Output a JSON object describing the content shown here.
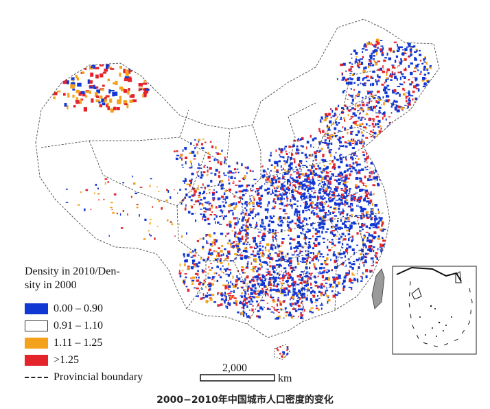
{
  "legend": {
    "title": "Density in 2010/Den-sity in 2000",
    "title_line1": "Density in 2010/Den-",
    "title_line2": "sity in 2000",
    "items": [
      {
        "label": "0.00 – 0.90",
        "color": "#1238d4"
      },
      {
        "label": "0.91 – 1.10",
        "color": "#ffffff"
      },
      {
        "label": "1.11 – 1.25",
        "color": "#f4a21c"
      },
      {
        "label": ">1.25",
        "color": "#e3242b"
      }
    ],
    "boundary_label": "Provincial boundary"
  },
  "scale_bar": {
    "value": "2,000",
    "unit": "km"
  },
  "caption": "2000−2010年中国城市人口密度的变化",
  "colors": {
    "blue": "#1238d4",
    "white": "#ffffff",
    "orange": "#f4a21c",
    "red": "#e3242b",
    "boundary": "#333333"
  },
  "icons": [
    "inset-map-south-china-sea",
    "taiwan-island",
    "hainan-island"
  ]
}
